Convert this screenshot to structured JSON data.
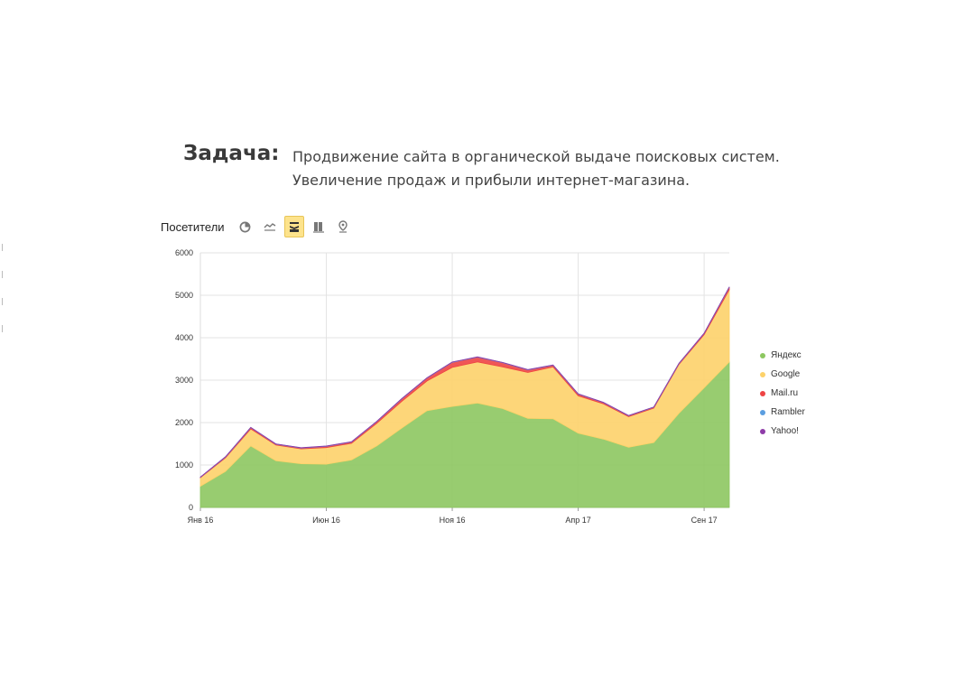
{
  "task": {
    "label": "Задача:",
    "line1": "Продвижение сайта в органической выдаче поисковых систем.",
    "line2": "Увеличение продаж и прибыли интернет-магазина."
  },
  "toolbar": {
    "title": "Посетители",
    "buttons": [
      {
        "icon": "pie-chart-icon",
        "active": false
      },
      {
        "icon": "line-chart-icon",
        "active": false
      },
      {
        "icon": "stacked-area-icon",
        "active": true
      },
      {
        "icon": "bar-chart-icon",
        "active": false
      },
      {
        "icon": "map-pin-icon",
        "active": false
      }
    ]
  },
  "chart_data": {
    "type": "area",
    "stacked": true,
    "title": "",
    "xlabel": "",
    "ylabel": "",
    "ylim": [
      0,
      6000
    ],
    "yticks": [
      0,
      1000,
      2000,
      3000,
      4000,
      5000,
      6000
    ],
    "ytick_labels": [
      "0",
      "1000",
      "2000",
      "3000",
      "4000",
      "5000",
      "6000"
    ],
    "x": [
      "2016-01",
      "2016-02",
      "2016-03",
      "2016-04",
      "2016-05",
      "2016-06",
      "2016-07",
      "2016-08",
      "2016-09",
      "2016-10",
      "2016-11",
      "2016-12",
      "2017-01",
      "2017-02",
      "2017-03",
      "2017-04",
      "2017-05",
      "2017-06",
      "2017-07",
      "2017-08",
      "2017-09",
      "2017-10"
    ],
    "xticks": [
      {
        "label": "Янв 16",
        "index": 0
      },
      {
        "label": "Июн 16",
        "index": 5
      },
      {
        "label": "Ноя 16",
        "index": 10
      },
      {
        "label": "Апр 17",
        "index": 15
      },
      {
        "label": "Сен 17",
        "index": 20
      }
    ],
    "grid": true,
    "legend_position": "right",
    "series": [
      {
        "name": "Яндекс",
        "color": "#8dc760",
        "values": [
          500,
          850,
          1450,
          1100,
          1030,
          1020,
          1120,
          1450,
          1870,
          2280,
          2380,
          2460,
          2330,
          2100,
          2090,
          1750,
          1610,
          1420,
          1530,
          2220,
          2820,
          3430
        ]
      },
      {
        "name": "Google",
        "color": "#fdd26a",
        "values": [
          200,
          320,
          400,
          370,
          350,
          390,
          390,
          530,
          630,
          700,
          920,
          970,
          980,
          1080,
          1220,
          880,
          830,
          720,
          810,
          1150,
          1250,
          1700
        ]
      },
      {
        "name": "Mail.ru",
        "color": "#ee4444",
        "values": [
          10,
          20,
          30,
          20,
          20,
          30,
          30,
          40,
          60,
          70,
          120,
          110,
          100,
          60,
          40,
          40,
          30,
          20,
          20,
          20,
          30,
          60
        ]
      },
      {
        "name": "Rambler",
        "color": "#5b9ee0",
        "values": [
          5,
          5,
          5,
          5,
          5,
          5,
          5,
          5,
          5,
          5,
          5,
          5,
          5,
          5,
          5,
          5,
          5,
          5,
          5,
          5,
          5,
          5
        ]
      },
      {
        "name": "Yahoo!",
        "color": "#8e3ca8",
        "values": [
          3,
          3,
          3,
          3,
          3,
          3,
          3,
          3,
          3,
          3,
          3,
          3,
          3,
          3,
          3,
          3,
          3,
          3,
          3,
          3,
          3,
          3
        ]
      }
    ]
  }
}
